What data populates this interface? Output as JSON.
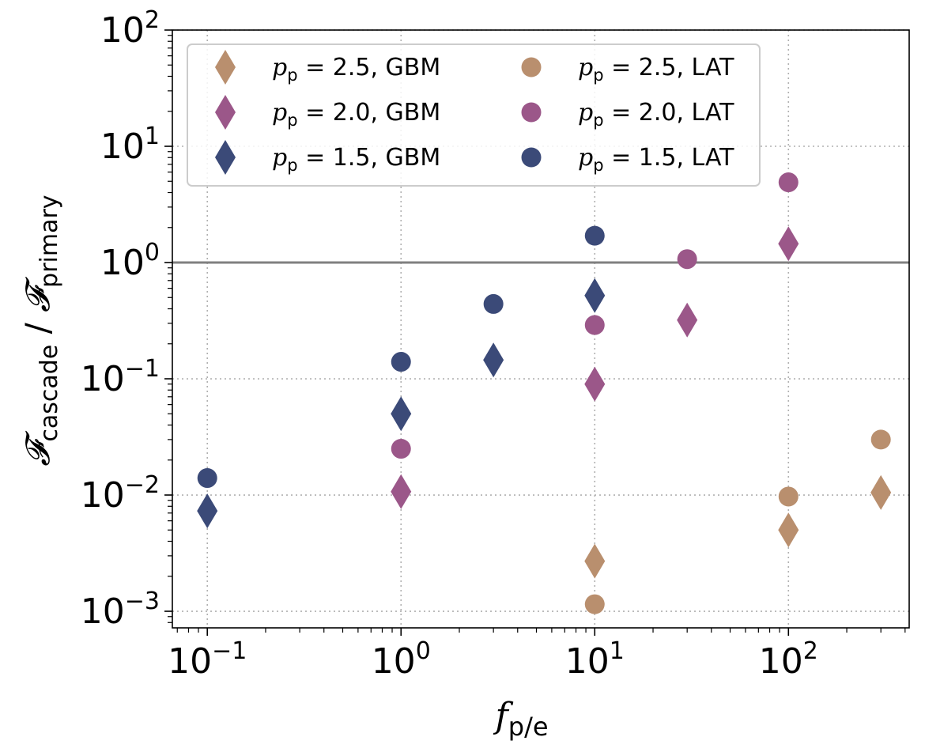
{
  "chart_data": {
    "type": "scatter",
    "xscale": "log",
    "yscale": "log",
    "xlim": [
      0.066,
      420
    ],
    "ylim": [
      0.00072,
      100
    ],
    "grid": true,
    "legend_position": "upper-left",
    "xlabel": {
      "base": "f",
      "subscript": "p/e"
    },
    "ylabel": {
      "num": "𝓕",
      "num_sub": "cascade",
      "sep": " / ",
      "den": "𝓕",
      "den_sub": "primary"
    },
    "xticks": [
      {
        "value": 0.1,
        "base": "10",
        "exp": "−1"
      },
      {
        "value": 1,
        "base": "10",
        "exp": "0"
      },
      {
        "value": 10,
        "base": "10",
        "exp": "1"
      },
      {
        "value": 100,
        "base": "10",
        "exp": "2"
      }
    ],
    "yticks": [
      {
        "value": 0.001,
        "base": "10",
        "exp": "−3"
      },
      {
        "value": 0.01,
        "base": "10",
        "exp": "−2"
      },
      {
        "value": 0.1,
        "base": "10",
        "exp": "−1"
      },
      {
        "value": 1,
        "base": "10",
        "exp": "0"
      },
      {
        "value": 10,
        "base": "10",
        "exp": "1"
      },
      {
        "value": 100,
        "base": "10",
        "exp": "2"
      }
    ],
    "reference_line": {
      "y": 1,
      "color": "#808080"
    },
    "series": [
      {
        "pp": "2.5",
        "instrument": "GBM",
        "marker": "diamond",
        "color": "#b98f6e",
        "points": [
          [
            10,
            0.0027
          ],
          [
            100,
            0.005
          ],
          [
            300,
            0.0105
          ]
        ]
      },
      {
        "pp": "2.0",
        "instrument": "GBM",
        "marker": "diamond",
        "color": "#9b5789",
        "points": [
          [
            1,
            0.0107
          ],
          [
            10,
            0.09
          ],
          [
            30,
            0.32
          ],
          [
            100,
            1.45
          ]
        ]
      },
      {
        "pp": "1.5",
        "instrument": "GBM",
        "marker": "diamond",
        "color": "#3b4a78",
        "points": [
          [
            0.1,
            0.0073
          ],
          [
            1,
            0.05
          ],
          [
            3,
            0.145
          ],
          [
            10,
            0.52
          ]
        ]
      },
      {
        "pp": "2.5",
        "instrument": "LAT",
        "marker": "circle",
        "color": "#b98f6e",
        "points": [
          [
            10,
            0.00115
          ],
          [
            100,
            0.0097
          ],
          [
            300,
            0.03
          ]
        ]
      },
      {
        "pp": "2.0",
        "instrument": "LAT",
        "marker": "circle",
        "color": "#9b5789",
        "points": [
          [
            1,
            0.025
          ],
          [
            10,
            0.29
          ],
          [
            30,
            1.07
          ],
          [
            100,
            4.9
          ]
        ]
      },
      {
        "pp": "1.5",
        "instrument": "LAT",
        "marker": "circle",
        "color": "#3b4a78",
        "points": [
          [
            0.1,
            0.014
          ],
          [
            1,
            0.14
          ],
          [
            3,
            0.44
          ],
          [
            10,
            1.7
          ]
        ]
      }
    ],
    "legend": [
      {
        "symbol": "p",
        "sub": "p",
        "eq": " = 2.5, GBM",
        "marker": "diamond",
        "color": "#b98f6e"
      },
      {
        "symbol": "p",
        "sub": "p",
        "eq": " = 2.0, GBM",
        "marker": "diamond",
        "color": "#9b5789"
      },
      {
        "symbol": "p",
        "sub": "p",
        "eq": " = 1.5, GBM",
        "marker": "diamond",
        "color": "#3b4a78"
      },
      {
        "symbol": "p",
        "sub": "p",
        "eq": " = 2.5, LAT",
        "marker": "circle",
        "color": "#b98f6e"
      },
      {
        "symbol": "p",
        "sub": "p",
        "eq": " = 2.0, LAT",
        "marker": "circle",
        "color": "#9b5789"
      },
      {
        "symbol": "p",
        "sub": "p",
        "eq": " = 1.5, LAT",
        "marker": "circle",
        "color": "#3b4a78"
      }
    ]
  }
}
